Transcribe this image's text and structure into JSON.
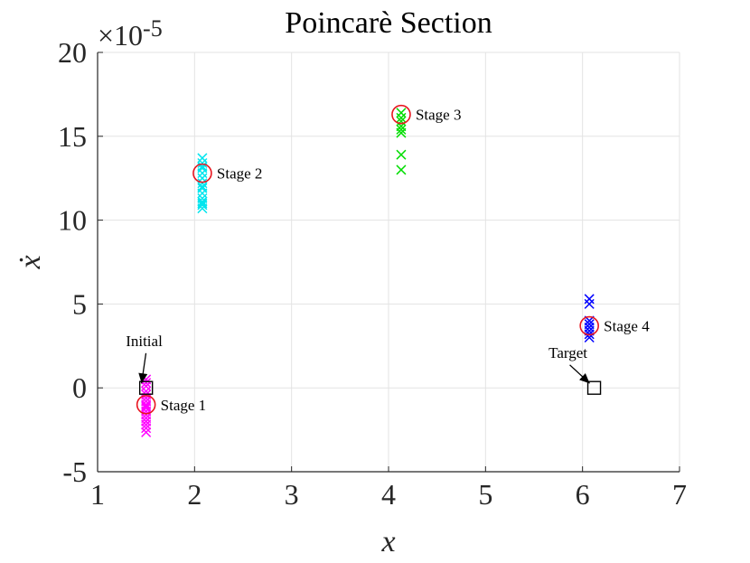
{
  "chart_data": {
    "type": "scatter",
    "title": "Poincarè Section",
    "xlabel": "x",
    "ylabel": "ẋ",
    "y_exponent_label": "×10",
    "y_exponent_power": "-5",
    "xlim": [
      1,
      7
    ],
    "ylim": [
      -5,
      20
    ],
    "xticks": [
      "1",
      "2",
      "3",
      "4",
      "5",
      "6",
      "7"
    ],
    "yticks": [
      "-5",
      "0",
      "5",
      "10",
      "15",
      "20"
    ],
    "grid": true,
    "series": [
      {
        "name": "Stage 1 points",
        "color": "#ff00ff",
        "x": [
          1.5,
          1.5,
          1.5,
          1.5,
          1.5,
          1.5,
          1.5,
          1.5,
          1.5,
          1.5,
          1.5,
          1.5,
          1.5,
          1.5,
          1.5,
          1.5,
          1.5
        ],
        "y": [
          0.5,
          0.3,
          0.1,
          -0.2,
          -0.4,
          -0.6,
          -0.8,
          -1.0,
          -1.2,
          -1.4,
          -1.6,
          -1.8,
          -2.0,
          -2.2,
          -2.4,
          -2.65,
          -1.1
        ]
      },
      {
        "name": "Stage 2 points",
        "color": "#00e5ee",
        "x": [
          2.08,
          2.08,
          2.08,
          2.08,
          2.08,
          2.08,
          2.08,
          2.08,
          2.08,
          2.08,
          2.08,
          2.08,
          2.08,
          2.08,
          2.08
        ],
        "y": [
          13.7,
          13.4,
          13.1,
          12.8,
          12.5,
          12.2,
          11.9,
          11.6,
          11.3,
          11.1,
          10.9,
          10.7,
          12.0,
          11.0,
          13.2
        ]
      },
      {
        "name": "Stage 3 points",
        "color": "#00dd00",
        "x": [
          4.13,
          4.13,
          4.13,
          4.13,
          4.13,
          4.13,
          4.13,
          4.13
        ],
        "y": [
          16.4,
          16.1,
          15.9,
          15.6,
          15.4,
          15.2,
          13.9,
          13.0
        ]
      },
      {
        "name": "Stage 4 points",
        "color": "#0000ff",
        "x": [
          6.07,
          6.07,
          6.07,
          6.07,
          6.07,
          6.07,
          6.07,
          6.07
        ],
        "y": [
          5.3,
          5.0,
          4.0,
          3.8,
          3.6,
          3.4,
          3.2,
          3.0
        ]
      }
    ],
    "stages": [
      {
        "label": "Stage 1",
        "x": 1.5,
        "y": -1.0
      },
      {
        "label": "Stage 2",
        "x": 2.08,
        "y": 12.8
      },
      {
        "label": "Stage 3",
        "x": 4.13,
        "y": 16.3
      },
      {
        "label": "Stage 4",
        "x": 6.07,
        "y": 3.7
      }
    ],
    "markers": [
      {
        "label": "Initial",
        "x": 1.5,
        "y": 0.0,
        "label_x": 1.48,
        "label_y": 2.5
      },
      {
        "label": "Target",
        "x": 6.12,
        "y": 0.0,
        "label_x": 5.85,
        "label_y": 1.8
      }
    ],
    "colors": {
      "stage_circle": "#e8141e",
      "axis": "#262626",
      "grid": "#e3e3e3",
      "marker": "#000000"
    }
  }
}
